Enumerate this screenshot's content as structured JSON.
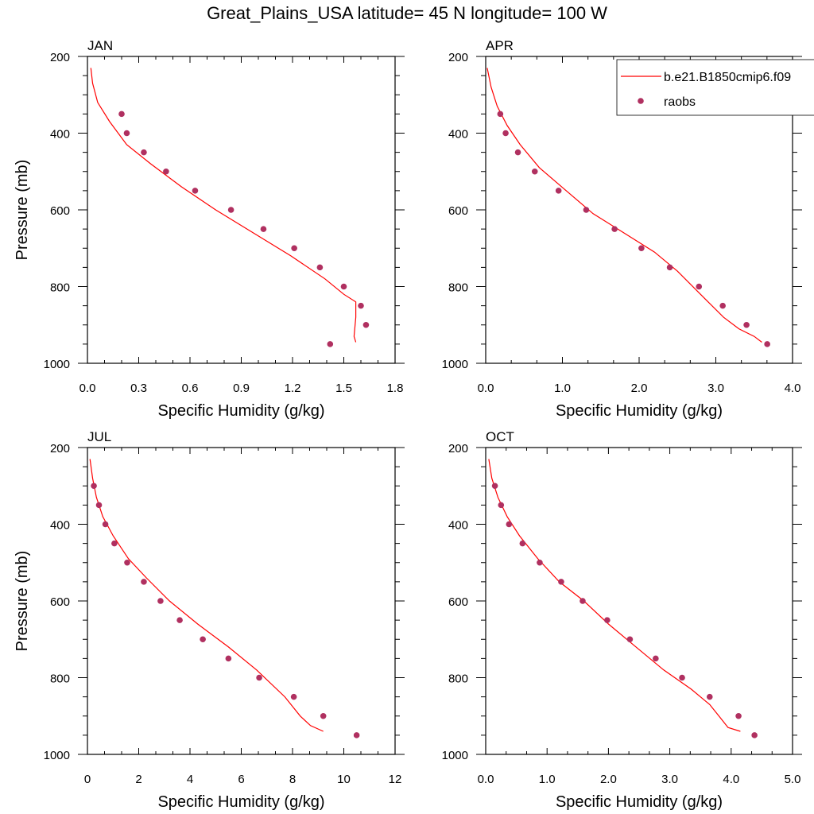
{
  "figure": {
    "title": "Great_Plains_USA  latitude= 45 N longitude= 100 W"
  },
  "colors": {
    "model": "#ff0000",
    "obs": "#b03060",
    "axis": "#000000"
  },
  "legend": {
    "placement": "top-right of APR panel",
    "items": [
      {
        "label": "b.e21.B1850cmip6.f09",
        "marker": "line",
        "color": "#ff0000"
      },
      {
        "label": "raobs",
        "marker": "dot",
        "color": "#b03060"
      }
    ]
  },
  "chart_data": [
    {
      "type": "line",
      "panel_label": "JAN",
      "xlabel": "Specific Humidity (g/kg)",
      "ylabel": "Pressure (mb)",
      "xlim": [
        0.0,
        1.8
      ],
      "ylim": [
        1000,
        200
      ],
      "y_inverted": true,
      "xticks": [
        "0.0",
        "0.3",
        "0.6",
        "0.9",
        "1.2",
        "1.5",
        "1.8"
      ],
      "yticks": [
        "200",
        "400",
        "600",
        "800",
        "1000"
      ],
      "series": [
        {
          "name": "b.e21.B1850cmip6.f09",
          "style": "line",
          "points": [
            [
              0.02,
              230
            ],
            [
              0.03,
              270
            ],
            [
              0.06,
              320
            ],
            [
              0.13,
              370
            ],
            [
              0.23,
              430
            ],
            [
              0.37,
              480
            ],
            [
              0.55,
              540
            ],
            [
              0.75,
              600
            ],
            [
              0.97,
              660
            ],
            [
              1.19,
              720
            ],
            [
              1.39,
              780
            ],
            [
              1.5,
              820
            ],
            [
              1.57,
              840
            ],
            [
              1.57,
              880
            ],
            [
              1.56,
              930
            ],
            [
              1.57,
              945
            ]
          ]
        },
        {
          "name": "raobs",
          "style": "scatter",
          "points": [
            [
              0.2,
              350
            ],
            [
              0.23,
              400
            ],
            [
              0.33,
              450
            ],
            [
              0.46,
              500
            ],
            [
              0.63,
              550
            ],
            [
              0.84,
              600
            ],
            [
              1.03,
              650
            ],
            [
              1.21,
              700
            ],
            [
              1.36,
              750
            ],
            [
              1.5,
              800
            ],
            [
              1.6,
              850
            ],
            [
              1.63,
              900
            ],
            [
              1.42,
              950
            ]
          ]
        }
      ]
    },
    {
      "type": "line",
      "panel_label": "APR",
      "xlabel": "Specific Humidity (g/kg)",
      "ylabel": "",
      "xlim": [
        0.0,
        4.0
      ],
      "ylim": [
        1000,
        200
      ],
      "y_inverted": true,
      "xticks": [
        "0.0",
        "1.0",
        "2.0",
        "3.0",
        "4.0"
      ],
      "yticks": [
        "200",
        "400",
        "600",
        "800",
        "1000"
      ],
      "series": [
        {
          "name": "b.e21.B1850cmip6.f09",
          "style": "line",
          "points": [
            [
              0.02,
              230
            ],
            [
              0.07,
              280
            ],
            [
              0.15,
              330
            ],
            [
              0.28,
              380
            ],
            [
              0.45,
              430
            ],
            [
              0.7,
              490
            ],
            [
              1.05,
              550
            ],
            [
              1.4,
              610
            ],
            [
              1.8,
              660
            ],
            [
              2.2,
              710
            ],
            [
              2.5,
              760
            ],
            [
              2.8,
              820
            ],
            [
              3.1,
              880
            ],
            [
              3.3,
              910
            ],
            [
              3.5,
              930
            ],
            [
              3.6,
              945
            ]
          ]
        },
        {
          "name": "raobs",
          "style": "scatter",
          "points": [
            [
              0.19,
              350
            ],
            [
              0.26,
              400
            ],
            [
              0.42,
              450
            ],
            [
              0.64,
              500
            ],
            [
              0.95,
              550
            ],
            [
              1.31,
              600
            ],
            [
              1.68,
              650
            ],
            [
              2.03,
              700
            ],
            [
              2.4,
              750
            ],
            [
              2.78,
              800
            ],
            [
              3.09,
              850
            ],
            [
              3.4,
              900
            ],
            [
              3.67,
              950
            ]
          ]
        }
      ]
    },
    {
      "type": "line",
      "panel_label": "JUL",
      "xlabel": "Specific Humidity (g/kg)",
      "ylabel": "Pressure (mb)",
      "xlim": [
        0,
        12
      ],
      "ylim": [
        1000,
        200
      ],
      "y_inverted": true,
      "xticks": [
        "0",
        "2",
        "4",
        "6",
        "8",
        "10",
        "12"
      ],
      "yticks": [
        "200",
        "400",
        "600",
        "800",
        "1000"
      ],
      "series": [
        {
          "name": "b.e21.B1850cmip6.f09",
          "style": "line",
          "points": [
            [
              0.1,
              230
            ],
            [
              0.2,
              280
            ],
            [
              0.35,
              330
            ],
            [
              0.6,
              380
            ],
            [
              1.0,
              430
            ],
            [
              1.6,
              490
            ],
            [
              2.3,
              540
            ],
            [
              3.2,
              600
            ],
            [
              4.3,
              660
            ],
            [
              5.5,
              720
            ],
            [
              6.6,
              780
            ],
            [
              7.7,
              850
            ],
            [
              8.3,
              900
            ],
            [
              8.7,
              925
            ],
            [
              9.2,
              940
            ]
          ]
        },
        {
          "name": "raobs",
          "style": "scatter",
          "points": [
            [
              0.25,
              300
            ],
            [
              0.45,
              350
            ],
            [
              0.7,
              400
            ],
            [
              1.05,
              450
            ],
            [
              1.55,
              500
            ],
            [
              2.2,
              550
            ],
            [
              2.85,
              600
            ],
            [
              3.6,
              650
            ],
            [
              4.5,
              700
            ],
            [
              5.5,
              750
            ],
            [
              6.7,
              800
            ],
            [
              8.05,
              850
            ],
            [
              9.2,
              900
            ],
            [
              10.5,
              950
            ]
          ]
        }
      ]
    },
    {
      "type": "line",
      "panel_label": "OCT",
      "xlabel": "Specific Humidity (g/kg)",
      "ylabel": "",
      "xlim": [
        0.0,
        5.0
      ],
      "ylim": [
        1000,
        200
      ],
      "y_inverted": true,
      "xticks": [
        "0.0",
        "1.0",
        "2.0",
        "3.0",
        "4.0",
        "5.0"
      ],
      "yticks": [
        "200",
        "400",
        "600",
        "800",
        "1000"
      ],
      "series": [
        {
          "name": "b.e21.B1850cmip6.f09",
          "style": "line",
          "points": [
            [
              0.05,
              230
            ],
            [
              0.1,
              280
            ],
            [
              0.2,
              330
            ],
            [
              0.35,
              380
            ],
            [
              0.55,
              430
            ],
            [
              0.85,
              490
            ],
            [
              1.2,
              550
            ],
            [
              1.6,
              600
            ],
            [
              2.0,
              660
            ],
            [
              2.45,
              720
            ],
            [
              2.9,
              780
            ],
            [
              3.35,
              830
            ],
            [
              3.65,
              870
            ],
            [
              3.8,
              900
            ],
            [
              3.95,
              930
            ],
            [
              4.15,
              940
            ]
          ]
        },
        {
          "name": "raobs",
          "style": "scatter",
          "points": [
            [
              0.15,
              300
            ],
            [
              0.25,
              350
            ],
            [
              0.38,
              400
            ],
            [
              0.6,
              450
            ],
            [
              0.88,
              500
            ],
            [
              1.23,
              550
            ],
            [
              1.58,
              600
            ],
            [
              1.98,
              650
            ],
            [
              2.35,
              700
            ],
            [
              2.77,
              750
            ],
            [
              3.2,
              800
            ],
            [
              3.65,
              850
            ],
            [
              4.12,
              900
            ],
            [
              4.38,
              950
            ]
          ]
        }
      ]
    }
  ]
}
